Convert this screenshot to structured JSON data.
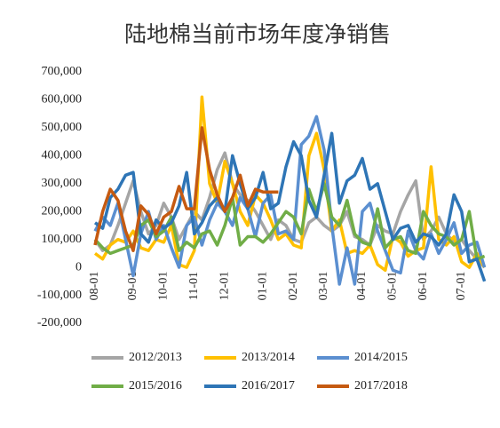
{
  "chart_data": {
    "type": "line",
    "title": "陆地棉当前市场年度净销售",
    "categories": [
      "08-01",
      null,
      null,
      null,
      null,
      "09-01",
      null,
      null,
      null,
      "10-01",
      null,
      null,
      null,
      "11-01",
      null,
      null,
      null,
      "12-01",
      null,
      null,
      null,
      null,
      "01-01",
      null,
      null,
      null,
      "02-01",
      null,
      null,
      null,
      "03-01",
      null,
      null,
      null,
      null,
      "04-01",
      null,
      null,
      null,
      "05-01",
      null,
      null,
      null,
      "06-01",
      null,
      null,
      null,
      null,
      "07-01",
      null,
      null,
      null
    ],
    "ylim": [
      -200000,
      700000
    ],
    "yticks": [
      {
        "value": -200000,
        "label": "-200,000"
      },
      {
        "value": -100000,
        "label": "-100,000"
      },
      0,
      {
        "value": 100000,
        "label": "100,000"
      },
      {
        "value": 200000,
        "label": "200,000"
      },
      {
        "value": 300000,
        "label": "300,000"
      },
      {
        "value": 400000,
        "label": "400,000"
      },
      {
        "value": 500000,
        "label": "500,000"
      },
      {
        "value": 600000,
        "label": "600,000"
      },
      {
        "value": 700000,
        "label": "700,000"
      }
    ],
    "legend": "bottom",
    "series": [
      {
        "name": "2012/2013",
        "color": "#a5a5a5",
        "values": [
          100000,
          60000,
          80000,
          150000,
          230000,
          310000,
          200000,
          120000,
          150000,
          230000,
          180000,
          100000,
          150000,
          200000,
          170000,
          250000,
          350000,
          410000,
          300000,
          260000,
          240000,
          200000,
          150000,
          100000,
          170000,
          150000,
          100000,
          90000,
          160000,
          180000,
          150000,
          130000,
          150000,
          200000,
          110000,
          100000,
          80000,
          150000,
          130000,
          120000,
          200000,
          260000,
          310000,
          100000,
          130000,
          180000,
          120000,
          90000,
          100000,
          60000,
          30000,
          0
        ]
      },
      {
        "name": "2013/2014",
        "color": "#ffc000",
        "values": [
          50000,
          30000,
          80000,
          100000,
          90000,
          130000,
          70000,
          60000,
          100000,
          90000,
          150000,
          10000,
          0,
          60000,
          610000,
          300000,
          230000,
          380000,
          300000,
          200000,
          150000,
          260000,
          230000,
          170000,
          100000,
          120000,
          80000,
          70000,
          400000,
          480000,
          350000,
          130000,
          170000,
          50000,
          60000,
          50000,
          80000,
          10000,
          -10000,
          110000,
          90000,
          40000,
          60000,
          70000,
          360000,
          100000,
          80000,
          110000,
          20000,
          0,
          50000,
          0
        ]
      },
      {
        "name": "2014/2015",
        "color": "#5b8fd0",
        "values": [
          130000,
          180000,
          150000,
          230000,
          100000,
          -30000,
          120000,
          200000,
          100000,
          150000,
          70000,
          0,
          150000,
          180000,
          80000,
          170000,
          230000,
          200000,
          150000,
          250000,
          210000,
          110000,
          230000,
          260000,
          120000,
          130000,
          100000,
          440000,
          470000,
          540000,
          420000,
          150000,
          -60000,
          70000,
          -60000,
          200000,
          230000,
          130000,
          60000,
          -10000,
          -20000,
          130000,
          60000,
          30000,
          120000,
          50000,
          100000,
          160000,
          50000,
          80000,
          90000,
          0
        ]
      },
      {
        "name": "2015/2016",
        "color": "#70ad47",
        "values": [
          100000,
          70000,
          50000,
          60000,
          70000,
          80000,
          150000,
          170000,
          110000,
          130000,
          180000,
          60000,
          90000,
          70000,
          120000,
          130000,
          80000,
          150000,
          250000,
          80000,
          110000,
          110000,
          90000,
          120000,
          160000,
          200000,
          180000,
          120000,
          280000,
          200000,
          300000,
          180000,
          150000,
          240000,
          120000,
          90000,
          80000,
          210000,
          70000,
          100000,
          110000,
          60000,
          50000,
          200000,
          150000,
          120000,
          110000,
          80000,
          100000,
          200000,
          30000,
          40000
        ]
      },
      {
        "name": "2016/2017",
        "color": "#2e75b6",
        "values": [
          160000,
          140000,
          250000,
          280000,
          330000,
          340000,
          120000,
          90000,
          170000,
          140000,
          160000,
          220000,
          340000,
          120000,
          160000,
          220000,
          250000,
          200000,
          400000,
          300000,
          210000,
          250000,
          340000,
          210000,
          230000,
          360000,
          450000,
          400000,
          240000,
          180000,
          330000,
          480000,
          230000,
          310000,
          330000,
          390000,
          280000,
          300000,
          200000,
          100000,
          140000,
          150000,
          90000,
          120000,
          110000,
          80000,
          120000,
          260000,
          200000,
          20000,
          30000,
          -50000
        ]
      },
      {
        "name": "2017/2018",
        "color": "#c55a11",
        "values": [
          80000,
          200000,
          280000,
          240000,
          130000,
          60000,
          220000,
          190000,
          120000,
          180000,
          200000,
          290000,
          210000,
          210000,
          500000,
          350000,
          260000,
          200000,
          250000,
          330000,
          220000,
          280000,
          270000,
          270000,
          270000,
          null,
          null,
          null,
          null,
          null,
          null,
          null,
          null,
          null,
          null,
          null,
          null,
          null,
          null,
          null,
          null,
          null,
          null,
          null,
          null,
          null,
          null,
          null,
          null,
          null,
          null,
          null
        ]
      }
    ]
  }
}
